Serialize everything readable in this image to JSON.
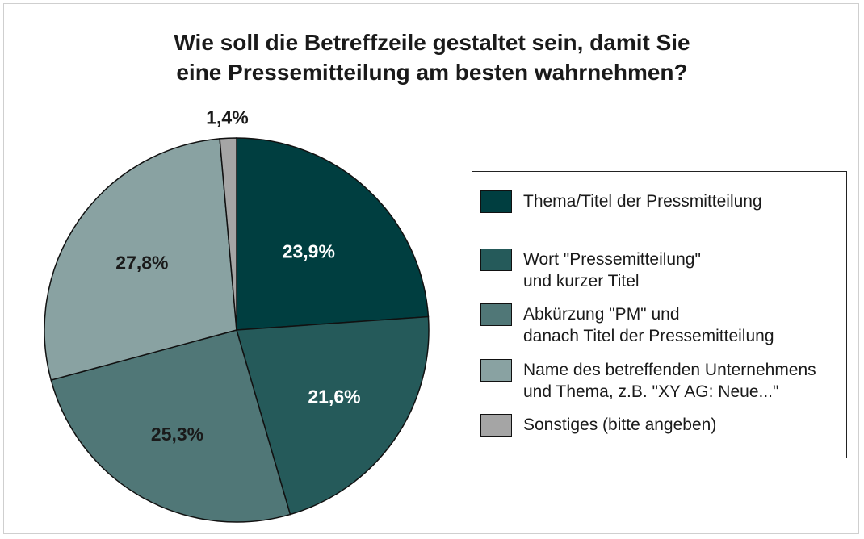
{
  "chart_data": {
    "type": "pie",
    "title_lines": [
      "Wie soll die Betreffzeile gestaltet sein, damit Sie",
      "eine Pressemitteilung am besten wahrnehmen?"
    ],
    "slices": [
      {
        "label_lines": [
          "Thema/Titel der Pressmitteilung"
        ],
        "value": 23.9,
        "value_label": "23,9%",
        "color": "#003e40"
      },
      {
        "label_lines": [
          "Wort \"Pressemitteilung\"",
          "und kurzer Titel"
        ],
        "value": 21.6,
        "value_label": "21,6%",
        "color": "#255a5a"
      },
      {
        "label_lines": [
          "Abkürzung \"PM\" und",
          "danach Titel der Pressemitteilung"
        ],
        "value": 25.3,
        "value_label": "25,3%",
        "color": "#507777"
      },
      {
        "label_lines": [
          "Name des betreffenden Unternehmens",
          "und Thema, z.B. \"XY AG: Neue...\""
        ],
        "value": 27.8,
        "value_label": "27,8%",
        "color": "#89a2a2"
      },
      {
        "label_lines": [
          "Sonstiges (bitte angeben)"
        ],
        "value": 1.4,
        "value_label": "1,4%",
        "color": "#a5a5a5"
      }
    ],
    "start": "12 o'clock",
    "direction": "clockwise",
    "legend_position": "right"
  }
}
